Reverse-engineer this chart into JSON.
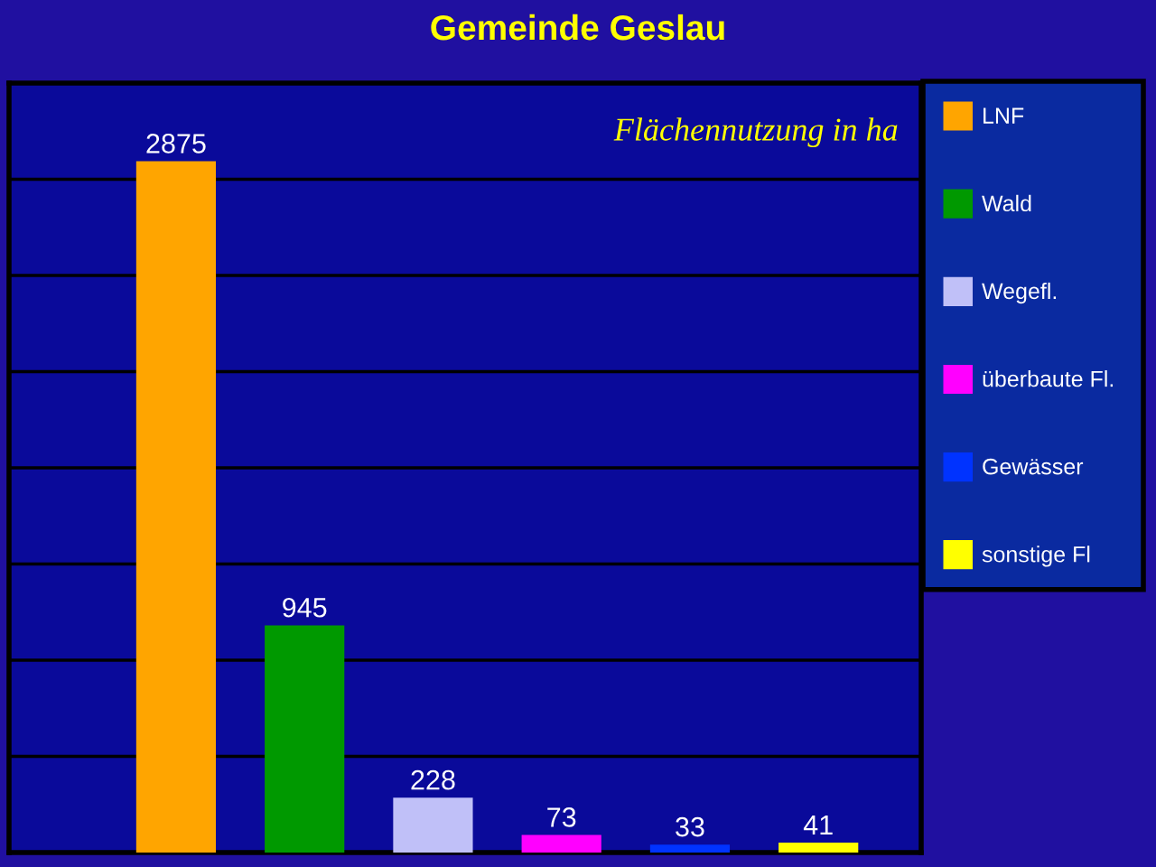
{
  "chart_data": {
    "type": "bar",
    "title": "Gemeinde Geslau",
    "annotations": [
      "Flächennutzung in ha"
    ],
    "categories": [
      null,
      null,
      null,
      null,
      null,
      null
    ],
    "series": [
      {
        "name": "LNF",
        "color": "#ffa500",
        "values": [
          2875,
          null,
          null,
          null,
          null,
          null
        ]
      },
      {
        "name": "Wald",
        "color": "#009900",
        "values": [
          null,
          945,
          null,
          null,
          null,
          null
        ]
      },
      {
        "name": "Wegefl.",
        "color": "#c0c0f8",
        "values": [
          null,
          null,
          228,
          null,
          null,
          null
        ]
      },
      {
        "name": "überbaute Fl.",
        "color": "#ff00ff",
        "values": [
          null,
          null,
          null,
          73,
          null,
          null
        ]
      },
      {
        "name": "Gewässer",
        "color": "#0033ff",
        "values": [
          null,
          null,
          null,
          null,
          33,
          null
        ]
      },
      {
        "name": "sonstige Fl",
        "color": "#ffff00",
        "values": [
          null,
          null,
          null,
          null,
          null,
          41
        ]
      }
    ],
    "stacked": true,
    "data_labels": true,
    "ylim": [
      0,
      3200
    ],
    "yticks": [
      {
        "value": 0,
        "label": null
      },
      {
        "value": 400,
        "label": null
      },
      {
        "value": 800,
        "label": null
      },
      {
        "value": 1200,
        "label": null
      },
      {
        "value": 1600,
        "label": null
      },
      {
        "value": 2000,
        "label": null
      },
      {
        "value": 2400,
        "label": null
      },
      {
        "value": 2800,
        "label": null
      },
      {
        "value": 3200,
        "label": null
      }
    ],
    "grid": "y",
    "legend": "right"
  }
}
